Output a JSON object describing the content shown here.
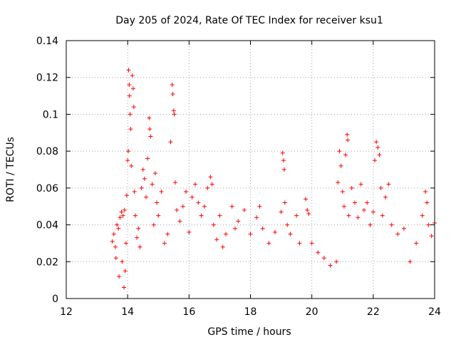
{
  "chart_data": {
    "type": "scatter",
    "title": "Day 205 of 2024, Rate Of TEC Index for receiver ksu1",
    "xlabel": "GPS time / hours",
    "ylabel": "ROTI / TECUs",
    "xlim": [
      12,
      24
    ],
    "ylim": [
      0,
      0.14
    ],
    "x_ticks": [
      12,
      14,
      16,
      18,
      20,
      22,
      24
    ],
    "y_ticks": [
      0,
      0.02,
      0.04,
      0.06,
      0.08,
      0.1,
      0.12,
      0.14
    ],
    "x_tick_labels": [
      "12",
      "14",
      "16",
      "18",
      "20",
      "22",
      "24"
    ],
    "y_tick_labels": [
      "0",
      "0.02",
      "0.04",
      "0.06",
      "0.08",
      "0.1",
      "0.12",
      "0.14"
    ],
    "grid": true,
    "marker": "+",
    "marker_color": "#ff0000",
    "series": [
      {
        "name": "ROTI",
        "points": [
          [
            13.5,
            0.031
          ],
          [
            13.55,
            0.035
          ],
          [
            13.6,
            0.028
          ],
          [
            13.62,
            0.022
          ],
          [
            13.65,
            0.04
          ],
          [
            13.7,
            0.038
          ],
          [
            13.72,
            0.012
          ],
          [
            13.75,
            0.044
          ],
          [
            13.8,
            0.047
          ],
          [
            13.82,
            0.02
          ],
          [
            13.85,
            0.045
          ],
          [
            13.88,
            0.006
          ],
          [
            13.9,
            0.048
          ],
          [
            13.92,
            0.015
          ],
          [
            13.95,
            0.03
          ],
          [
            13.97,
            0.056
          ],
          [
            14.0,
            0.075
          ],
          [
            14.02,
            0.08
          ],
          [
            14.03,
            0.124
          ],
          [
            14.05,
            0.116
          ],
          [
            14.06,
            0.11
          ],
          [
            14.08,
            0.1
          ],
          [
            14.1,
            0.092
          ],
          [
            14.12,
            0.072
          ],
          [
            14.15,
            0.121
          ],
          [
            14.18,
            0.114
          ],
          [
            14.2,
            0.104
          ],
          [
            14.22,
            0.058
          ],
          [
            14.25,
            0.045
          ],
          [
            14.3,
            0.033
          ],
          [
            14.35,
            0.038
          ],
          [
            14.4,
            0.028
          ],
          [
            14.45,
            0.06
          ],
          [
            14.5,
            0.07
          ],
          [
            14.55,
            0.065
          ],
          [
            14.6,
            0.055
          ],
          [
            14.65,
            0.076
          ],
          [
            14.7,
            0.098
          ],
          [
            14.72,
            0.092
          ],
          [
            14.75,
            0.088
          ],
          [
            14.8,
            0.062
          ],
          [
            14.85,
            0.04
          ],
          [
            14.9,
            0.068
          ],
          [
            14.95,
            0.052
          ],
          [
            15.0,
            0.045
          ],
          [
            15.1,
            0.058
          ],
          [
            15.2,
            0.03
          ],
          [
            15.3,
            0.035
          ],
          [
            15.4,
            0.085
          ],
          [
            15.45,
            0.116
          ],
          [
            15.47,
            0.111
          ],
          [
            15.5,
            0.102
          ],
          [
            15.52,
            0.1
          ],
          [
            15.55,
            0.063
          ],
          [
            15.6,
            0.048
          ],
          [
            15.7,
            0.042
          ],
          [
            15.8,
            0.05
          ],
          [
            15.9,
            0.058
          ],
          [
            16.0,
            0.036
          ],
          [
            16.1,
            0.055
          ],
          [
            16.2,
            0.062
          ],
          [
            16.3,
            0.052
          ],
          [
            16.4,
            0.045
          ],
          [
            16.5,
            0.05
          ],
          [
            16.6,
            0.06
          ],
          [
            16.7,
            0.066
          ],
          [
            16.75,
            0.062
          ],
          [
            16.8,
            0.04
          ],
          [
            16.9,
            0.032
          ],
          [
            17.0,
            0.045
          ],
          [
            17.1,
            0.028
          ],
          [
            17.2,
            0.035
          ],
          [
            17.4,
            0.05
          ],
          [
            17.5,
            0.038
          ],
          [
            17.6,
            0.042
          ],
          [
            17.8,
            0.048
          ],
          [
            18.0,
            0.035
          ],
          [
            18.2,
            0.044
          ],
          [
            18.3,
            0.05
          ],
          [
            18.4,
            0.038
          ],
          [
            18.6,
            0.03
          ],
          [
            18.8,
            0.036
          ],
          [
            19.0,
            0.047
          ],
          [
            19.05,
            0.079
          ],
          [
            19.08,
            0.075
          ],
          [
            19.1,
            0.07
          ],
          [
            19.12,
            0.052
          ],
          [
            19.2,
            0.04
          ],
          [
            19.3,
            0.035
          ],
          [
            19.5,
            0.045
          ],
          [
            19.6,
            0.03
          ],
          [
            19.8,
            0.054
          ],
          [
            19.85,
            0.048
          ],
          [
            19.9,
            0.046
          ],
          [
            20.0,
            0.03
          ],
          [
            20.2,
            0.025
          ],
          [
            20.4,
            0.022
          ],
          [
            20.6,
            0.018
          ],
          [
            20.8,
            0.02
          ],
          [
            20.85,
            0.063
          ],
          [
            20.9,
            0.08
          ],
          [
            20.95,
            0.072
          ],
          [
            21.0,
            0.058
          ],
          [
            21.05,
            0.05
          ],
          [
            21.1,
            0.078
          ],
          [
            21.15,
            0.089
          ],
          [
            21.17,
            0.086
          ],
          [
            21.2,
            0.045
          ],
          [
            21.3,
            0.06
          ],
          [
            21.4,
            0.052
          ],
          [
            21.5,
            0.044
          ],
          [
            21.6,
            0.062
          ],
          [
            21.7,
            0.048
          ],
          [
            21.8,
            0.052
          ],
          [
            21.9,
            0.04
          ],
          [
            22.0,
            0.047
          ],
          [
            22.05,
            0.075
          ],
          [
            22.1,
            0.085
          ],
          [
            22.15,
            0.082
          ],
          [
            22.2,
            0.078
          ],
          [
            22.25,
            0.06
          ],
          [
            22.3,
            0.045
          ],
          [
            22.4,
            0.055
          ],
          [
            22.5,
            0.062
          ],
          [
            22.6,
            0.04
          ],
          [
            22.8,
            0.035
          ],
          [
            23.0,
            0.038
          ],
          [
            23.2,
            0.02
          ],
          [
            23.4,
            0.03
          ],
          [
            23.6,
            0.045
          ],
          [
            23.7,
            0.058
          ],
          [
            23.75,
            0.052
          ],
          [
            23.8,
            0.04
          ],
          [
            23.9,
            0.034
          ],
          [
            24.0,
            0.041
          ]
        ]
      }
    ]
  }
}
